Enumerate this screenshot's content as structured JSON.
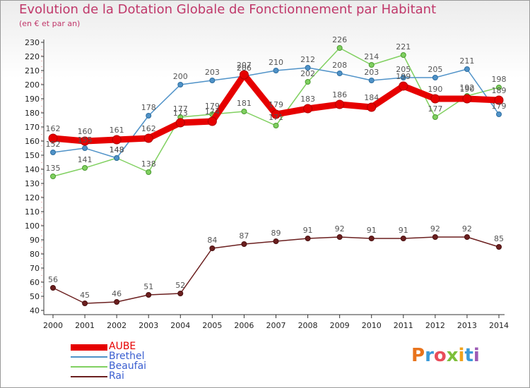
{
  "title": "Evolution de la Dotation Globale de Fonctionnement par Habitant",
  "subtitle": "(en € et par an)",
  "logo": {
    "text": "Proxiti",
    "colors": [
      "#e8731c",
      "#3a9ad9",
      "#e84d5b",
      "#7cbf3a",
      "#f0a31c",
      "#3a9ad9",
      "#9c5bb5"
    ]
  },
  "chart_data": {
    "type": "line",
    "title": "Evolution de la Dotation Globale de Fonctionnement par Habitant",
    "subtitle": "(en € et par an)",
    "xlabel": "",
    "ylabel": "",
    "x": [
      "2000",
      "2001",
      "2002",
      "2003",
      "2004",
      "2005",
      "2006",
      "2007",
      "2008",
      "2009",
      "2010",
      "2011",
      "2012",
      "2013",
      "2014"
    ],
    "ylim": [
      40,
      230
    ],
    "yticks": [
      40,
      50,
      60,
      70,
      80,
      90,
      100,
      110,
      120,
      130,
      140,
      150,
      160,
      170,
      180,
      190,
      200,
      210,
      220,
      230
    ],
    "grid": false,
    "legend": "bottom-left",
    "series": [
      {
        "name": "AUBE",
        "color": "#e60000",
        "values": [
          162,
          160,
          161,
          162,
          173,
          174,
          207,
          179,
          183,
          186,
          184,
          199,
          190,
          190,
          189
        ]
      },
      {
        "name": "Brethel",
        "color": "#4f92c8",
        "values": [
          152,
          155,
          148,
          178,
          200,
          203,
          206,
          210,
          212,
          208,
          203,
          205,
          205,
          211,
          179
        ]
      },
      {
        "name": "Beaufai",
        "color": "#80d060",
        "values": [
          135,
          141,
          148,
          138,
          177,
          179,
          181,
          171,
          202,
          226,
          214,
          221,
          177,
          192,
          198
        ]
      },
      {
        "name": "Rai",
        "color": "#6b1f1f",
        "values": [
          56,
          45,
          46,
          51,
          52,
          84,
          87,
          89,
          91,
          92,
          91,
          91,
          92,
          92,
          85
        ]
      }
    ]
  }
}
